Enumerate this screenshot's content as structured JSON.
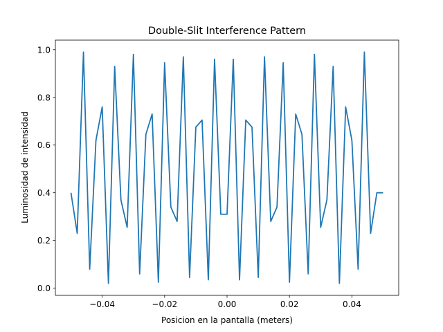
{
  "chart_data": {
    "type": "line",
    "title": "Double-Slit Interference Pattern",
    "xlabel": "Posicion en la pantalla (meters)",
    "ylabel": "Luminosidad de intensidad",
    "xlim": [
      -0.055,
      0.055
    ],
    "ylim": [
      -0.03,
      1.04
    ],
    "xticks": [
      -0.04,
      -0.02,
      0.0,
      0.02,
      0.04
    ],
    "xtick_labels": [
      "−0.04",
      "−0.02",
      "0.00",
      "0.02",
      "0.04"
    ],
    "yticks": [
      0.0,
      0.2,
      0.4,
      0.6,
      0.8,
      1.0
    ],
    "ytick_labels": [
      "0.0",
      "0.2",
      "0.4",
      "0.6",
      "0.8",
      "1.0"
    ],
    "grid": false,
    "legend": "none",
    "series": [
      {
        "color": "#1f77b4",
        "x": [
          -0.05,
          -0.048,
          -0.046,
          -0.044,
          -0.042,
          -0.04,
          -0.038,
          -0.036,
          -0.034,
          -0.032,
          -0.03,
          -0.028,
          -0.026,
          -0.024,
          -0.022,
          -0.02,
          -0.018,
          -0.016,
          -0.014,
          -0.012,
          -0.01,
          -0.008,
          -0.006,
          -0.004,
          -0.002,
          0.0,
          0.002,
          0.004,
          0.006,
          0.008,
          0.01,
          0.012,
          0.014,
          0.016,
          0.018,
          0.02,
          0.022,
          0.024,
          0.026,
          0.028,
          0.03,
          0.032,
          0.034,
          0.036,
          0.038,
          0.04,
          0.042,
          0.044,
          0.046,
          0.048,
          0.05
        ],
        "y": [
          0.4,
          0.23,
          0.99,
          0.08,
          0.62,
          0.76,
          0.02,
          0.93,
          0.37,
          0.255,
          0.98,
          0.06,
          0.645,
          0.73,
          0.025,
          0.945,
          0.34,
          0.28,
          0.97,
          0.045,
          0.675,
          0.705,
          0.035,
          0.96,
          0.31,
          0.31,
          0.96,
          0.035,
          0.705,
          0.675,
          0.045,
          0.97,
          0.28,
          0.34,
          0.945,
          0.025,
          0.73,
          0.645,
          0.06,
          0.98,
          0.255,
          0.37,
          0.93,
          0.02,
          0.76,
          0.62,
          0.08,
          0.99,
          0.23,
          0.4,
          0.4
        ]
      }
    ]
  }
}
